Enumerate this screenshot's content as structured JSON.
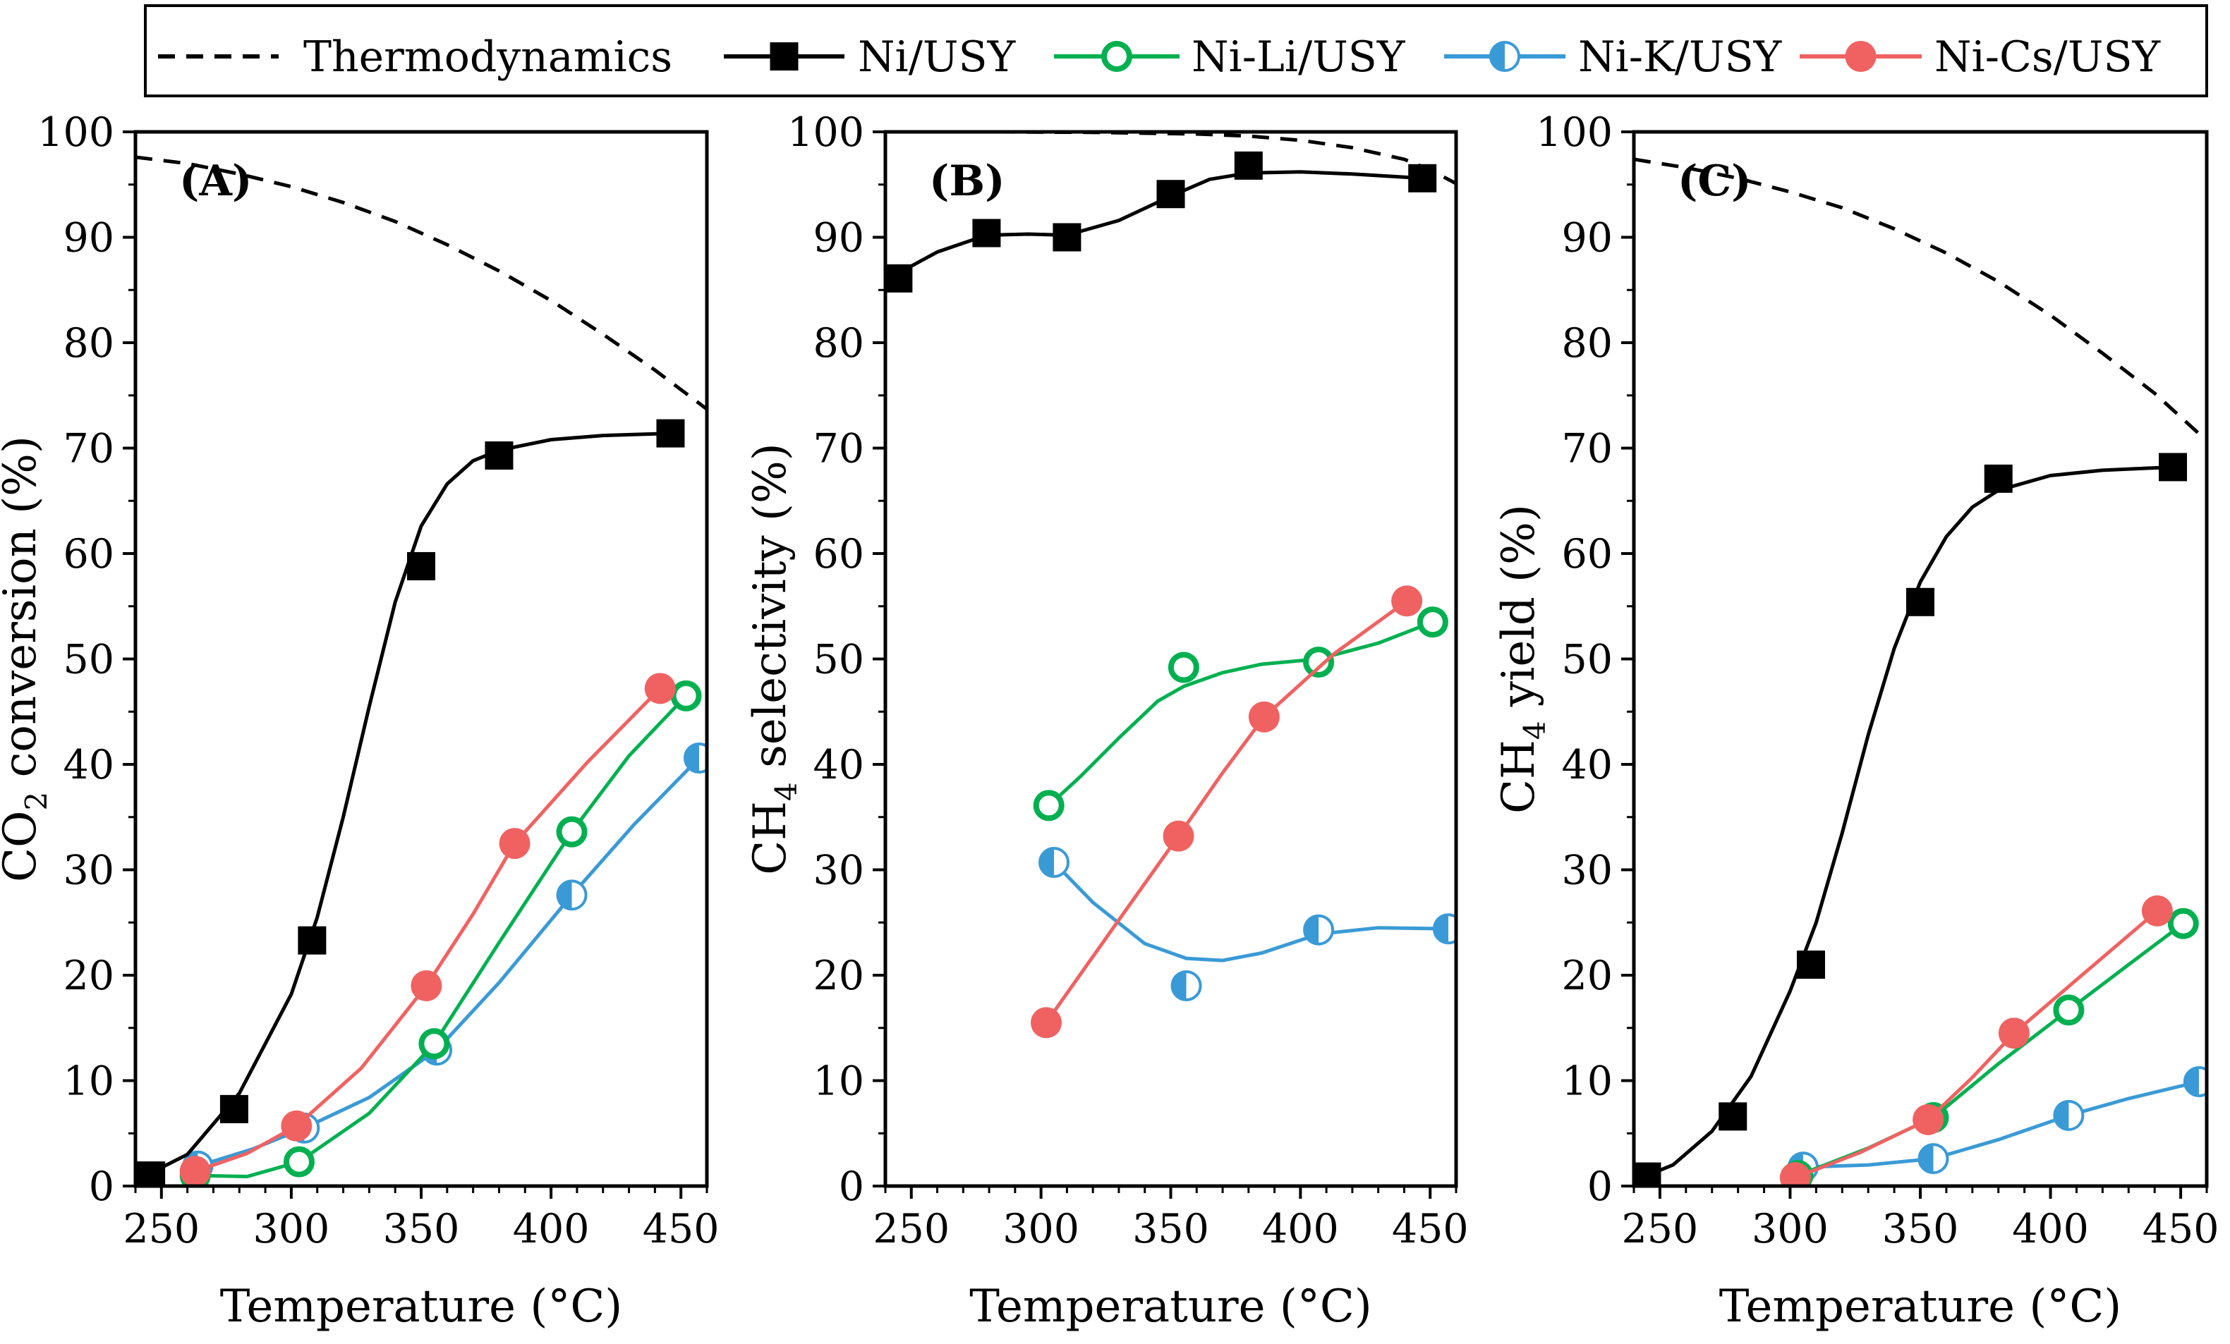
{
  "legend": {
    "entries": [
      {
        "label": "Thermodynamics",
        "series": "thermo"
      },
      {
        "label": "Ni/USY",
        "series": "ni"
      },
      {
        "label": "Ni-Li/USY",
        "series": "li"
      },
      {
        "label": "Ni-K/USY",
        "series": "k"
      },
      {
        "label": "Ni-Cs/USY",
        "series": "cs"
      }
    ]
  },
  "styles": {
    "thermo": {
      "color": "#000000",
      "marker": "none",
      "dash": true
    },
    "ni": {
      "color": "#000000",
      "marker": "square"
    },
    "li": {
      "color": "#00b050",
      "marker": "open-circle"
    },
    "k": {
      "color": "#3a9ad6",
      "marker": "half-circle"
    },
    "cs": {
      "color": "#f06262",
      "marker": "circle"
    }
  },
  "chart_data": [
    {
      "type": "line",
      "panel": "(A)",
      "xlabel": "Temperature (°C)",
      "ylabel_parts": [
        "CO",
        "2",
        " conversion (%)"
      ],
      "xlim": [
        240,
        460
      ],
      "ylim": [
        0,
        100
      ],
      "xticks": [
        250,
        300,
        350,
        400,
        450
      ],
      "yticks": [
        0,
        10,
        20,
        30,
        40,
        50,
        60,
        70,
        80,
        90,
        100
      ],
      "series": [
        {
          "key": "thermo",
          "name": "Thermodynamics",
          "x": [
            240,
            260,
            280,
            300,
            320,
            340,
            360,
            380,
            400,
            420,
            440,
            460
          ],
          "y": [
            97.6,
            97.0,
            96.0,
            94.8,
            93.3,
            91.5,
            89.3,
            86.8,
            84.0,
            80.8,
            77.4,
            73.7
          ]
        },
        {
          "key": "ni",
          "name": "Ni/USY",
          "x": [
            246,
            278,
            308,
            350,
            380,
            446
          ],
          "y": [
            1.0,
            7.3,
            23.3,
            58.8,
            69.3,
            71.4
          ],
          "fit_x": [
            240,
            260,
            280,
            300,
            310,
            320,
            330,
            340,
            350,
            360,
            370,
            380,
            400,
            420,
            446
          ],
          "fit_y": [
            0.5,
            3.0,
            8.8,
            18.2,
            25.5,
            35.0,
            45.5,
            55.4,
            62.6,
            66.6,
            68.8,
            69.8,
            70.8,
            71.2,
            71.4
          ]
        },
        {
          "key": "li",
          "name": "Ni-Li/USY",
          "x": [
            263,
            303,
            355,
            408,
            452
          ],
          "y": [
            1.0,
            2.3,
            13.5,
            33.6,
            46.5
          ],
          "fit_x": [
            263,
            283,
            303,
            330,
            355,
            380,
            408,
            430,
            452
          ],
          "fit_y": [
            1.0,
            0.9,
            2.3,
            6.9,
            13.5,
            23.1,
            33.6,
            40.8,
            46.5
          ]
        },
        {
          "key": "k",
          "name": "Ni-K/USY",
          "x": [
            264,
            305,
            356,
            408,
            457
          ],
          "y": [
            1.9,
            5.5,
            12.9,
            27.6,
            40.6
          ],
          "fit_x": [
            264,
            285,
            305,
            330,
            356,
            380,
            408,
            432,
            457
          ],
          "fit_y": [
            1.9,
            3.5,
            5.5,
            8.4,
            12.9,
            19.3,
            27.6,
            34.3,
            40.6
          ]
        },
        {
          "key": "cs",
          "name": "Ni-Cs/USY",
          "x": [
            263,
            302,
            352,
            386,
            442
          ],
          "y": [
            1.4,
            5.7,
            19.0,
            32.5,
            47.2
          ],
          "fit_x": [
            263,
            283,
            302,
            327,
            352,
            370,
            386,
            414,
            442
          ],
          "fit_y": [
            1.4,
            3.1,
            5.7,
            11.2,
            19.0,
            25.8,
            32.5,
            40.2,
            47.2
          ]
        }
      ]
    },
    {
      "type": "line",
      "panel": "(B)",
      "xlabel": "Temperature (°C)",
      "ylabel_parts": [
        "CH",
        "4",
        " selectivity (%)"
      ],
      "xlim": [
        240,
        460
      ],
      "ylim": [
        0,
        100
      ],
      "xticks": [
        250,
        300,
        350,
        400,
        450
      ],
      "yticks": [
        0,
        10,
        20,
        30,
        40,
        50,
        60,
        70,
        80,
        90,
        100
      ],
      "series": [
        {
          "key": "thermo",
          "name": "Thermodynamics",
          "x": [
            240,
            280,
            320,
            360,
            380,
            400,
            420,
            440,
            450,
            460
          ],
          "y": [
            100.0,
            100.0,
            99.95,
            99.8,
            99.6,
            99.2,
            98.5,
            97.4,
            96.4,
            95.1
          ]
        },
        {
          "key": "ni",
          "name": "Ni/USY",
          "x": [
            245,
            279,
            310,
            350,
            380,
            447
          ],
          "y": [
            86.1,
            90.4,
            90.0,
            94.1,
            96.8,
            95.6
          ],
          "fit_x": [
            240,
            245,
            260,
            279,
            295,
            310,
            330,
            350,
            365,
            380,
            400,
            420,
            447
          ],
          "fit_y": [
            85.5,
            86.6,
            88.6,
            90.2,
            90.3,
            90.2,
            91.6,
            93.9,
            95.5,
            96.1,
            96.2,
            96.0,
            95.6
          ]
        },
        {
          "key": "li",
          "name": "Ni-Li/USY",
          "x": [
            303,
            355,
            407,
            451
          ],
          "y": [
            36.1,
            49.2,
            49.7,
            53.5
          ],
          "fit_x": [
            303,
            315,
            330,
            345,
            355,
            370,
            385,
            407,
            430,
            451
          ],
          "fit_y": [
            36.1,
            38.8,
            42.5,
            46.0,
            47.4,
            48.7,
            49.5,
            50.0,
            51.5,
            53.5
          ]
        },
        {
          "key": "k",
          "name": "Ni-K/USY",
          "x": [
            305,
            356,
            407,
            457
          ],
          "y": [
            30.7,
            19.0,
            24.3,
            24.4
          ],
          "fit_x": [
            305,
            320,
            340,
            356,
            370,
            385,
            407,
            430,
            457
          ],
          "fit_y": [
            30.7,
            26.9,
            23.0,
            21.6,
            21.4,
            22.1,
            23.9,
            24.5,
            24.4
          ]
        },
        {
          "key": "cs",
          "name": "Ni-Cs/USY",
          "x": [
            302,
            353,
            386,
            441
          ],
          "y": [
            15.5,
            33.2,
            44.5,
            55.5
          ],
          "fit_x": [
            302,
            327,
            353,
            370,
            386,
            413,
            441
          ],
          "fit_y": [
            15.5,
            24.2,
            33.2,
            39.2,
            44.5,
            50.5,
            55.5
          ]
        }
      ]
    },
    {
      "type": "line",
      "panel": "(C)",
      "xlabel": "Temperature (°C)",
      "ylabel_parts": [
        "CH",
        "4",
        " yield (%)"
      ],
      "xlim": [
        240,
        460
      ],
      "ylim": [
        0,
        100
      ],
      "xticks": [
        250,
        300,
        350,
        400,
        450
      ],
      "yticks": [
        0,
        10,
        20,
        30,
        40,
        50,
        60,
        70,
        80,
        90,
        100
      ],
      "series": [
        {
          "key": "thermo",
          "name": "Thermodynamics",
          "x": [
            240,
            260,
            280,
            300,
            320,
            340,
            360,
            380,
            400,
            420,
            440,
            460
          ],
          "y": [
            97.4,
            96.6,
            95.6,
            94.3,
            92.8,
            90.8,
            88.5,
            85.8,
            82.6,
            79.0,
            75.2,
            70.7
          ]
        },
        {
          "key": "ni",
          "name": "Ni/USY",
          "x": [
            245,
            278,
            308,
            350,
            380,
            447
          ],
          "y": [
            0.9,
            6.6,
            21.0,
            55.4,
            67.1,
            68.2
          ],
          "fit_x": [
            240,
            255,
            270,
            285,
            300,
            310,
            320,
            330,
            340,
            350,
            360,
            370,
            380,
            400,
            420,
            447
          ],
          "fit_y": [
            0.5,
            2.0,
            5.2,
            10.4,
            18.5,
            25.0,
            33.5,
            42.8,
            51.0,
            57.3,
            61.6,
            64.4,
            66.0,
            67.4,
            67.9,
            68.2
          ]
        },
        {
          "key": "li",
          "name": "Ni-Li/USY",
          "x": [
            303,
            355,
            407,
            451
          ],
          "y": [
            1.0,
            6.5,
            16.7,
            24.9
          ],
          "fit_x": [
            303,
            330,
            355,
            380,
            407,
            430,
            451
          ],
          "fit_y": [
            1.0,
            3.6,
            6.5,
            11.6,
            16.7,
            21.0,
            24.9
          ]
        },
        {
          "key": "k",
          "name": "Ni-K/USY",
          "x": [
            305,
            355,
            407,
            457
          ],
          "y": [
            1.8,
            2.6,
            6.7,
            9.9
          ],
          "fit_x": [
            305,
            330,
            355,
            380,
            407,
            430,
            457
          ],
          "fit_y": [
            1.8,
            2.0,
            2.6,
            4.4,
            6.7,
            8.3,
            9.9
          ]
        },
        {
          "key": "cs",
          "name": "Ni-Cs/USY",
          "x": [
            302,
            353,
            386,
            441
          ],
          "y": [
            0.8,
            6.3,
            14.5,
            26.1
          ],
          "fit_x": [
            302,
            327,
            353,
            370,
            386,
            413,
            441
          ],
          "fit_y": [
            0.8,
            3.2,
            6.3,
            10.3,
            14.5,
            20.2,
            26.1
          ]
        }
      ]
    }
  ]
}
